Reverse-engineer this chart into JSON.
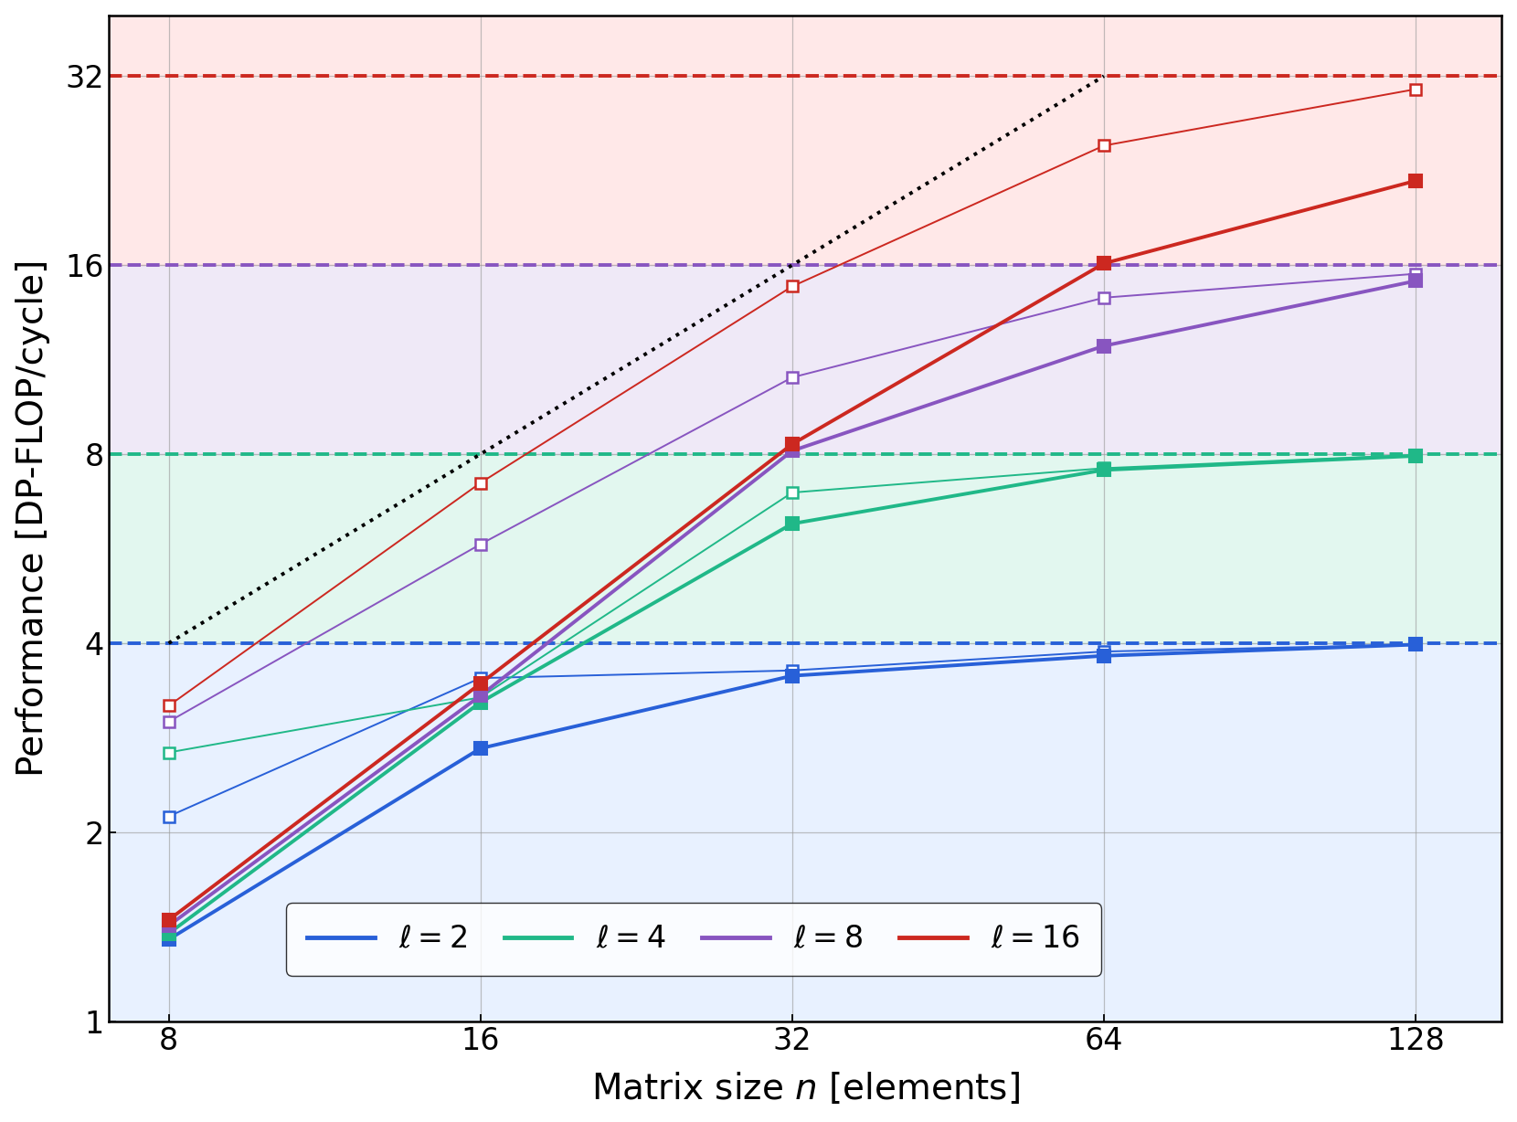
{
  "x": [
    8,
    16,
    32,
    64,
    128
  ],
  "lanes": [
    2,
    4,
    8,
    16
  ],
  "colors": [
    "#2860d8",
    "#20b888",
    "#8855c0",
    "#cc2820"
  ],
  "peak_perf": [
    4,
    8,
    16,
    32
  ],
  "actual_data": {
    "2": [
      1.35,
      2.72,
      3.55,
      3.82,
      3.98
    ],
    "4": [
      1.38,
      3.22,
      6.2,
      7.55,
      7.95
    ],
    "8": [
      1.42,
      3.3,
      8.1,
      11.9,
      15.1
    ],
    "16": [
      1.45,
      3.45,
      8.3,
      16.1,
      21.8
    ]
  },
  "ideal_data": {
    "2": [
      2.12,
      3.52,
      3.62,
      3.88,
      3.98
    ],
    "4": [
      2.68,
      3.28,
      6.95,
      7.6,
      7.98
    ],
    "8": [
      3.0,
      5.75,
      10.6,
      14.2,
      15.5
    ],
    "16": [
      3.18,
      7.2,
      14.8,
      24.8,
      30.5
    ]
  },
  "dotted_line_x": [
    8,
    16,
    32,
    64
  ],
  "dotted_line_y": [
    4.0,
    8.0,
    16.0,
    32.0
  ],
  "bg_colors": [
    "#cce0ff",
    "#c0eedd",
    "#ddd0ee",
    "#ffcccc"
  ],
  "bg_alpha": 0.45,
  "ylabel": "Performance [DP-FLOP/cycle]",
  "xlabel": "Matrix size $n$ [elements]",
  "yticks": [
    1,
    2,
    4,
    8,
    16,
    32
  ],
  "xticks": [
    8,
    16,
    32,
    64,
    128
  ],
  "ylim_bottom": 1.0,
  "ylim_top": 40.0,
  "lane_labels": [
    "$\\ell = 2$",
    "$\\ell = 4$",
    "$\\ell = 8$",
    "$\\ell = 16$"
  ]
}
